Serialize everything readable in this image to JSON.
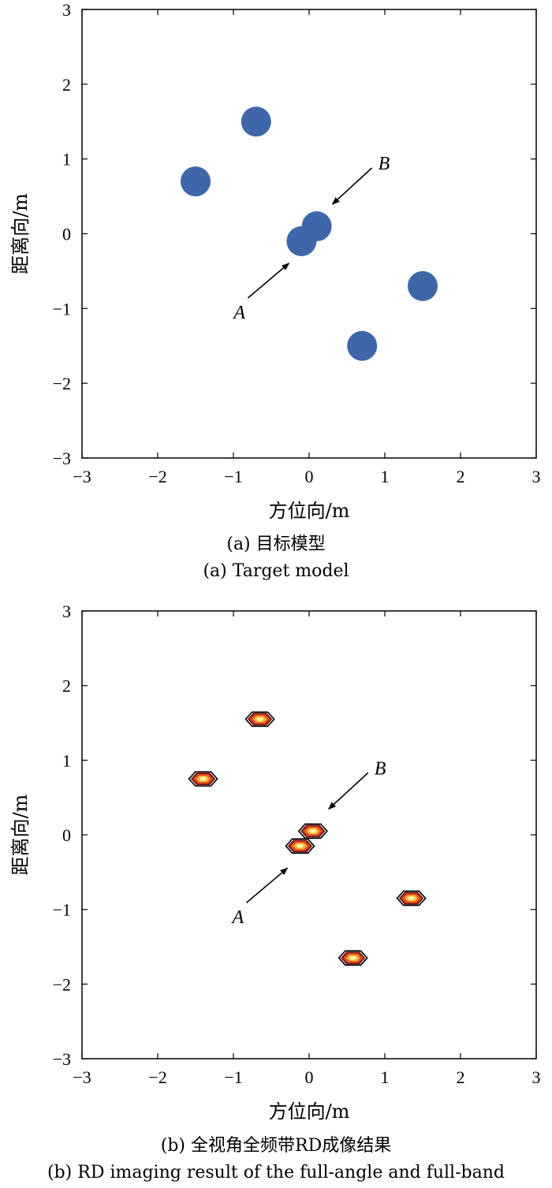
{
  "chart_data": [
    {
      "type": "scatter",
      "xlabel": "方位向/m",
      "ylabel": "距离向/m",
      "xlim": [
        -3,
        3
      ],
      "ylim": [
        -3,
        3
      ],
      "xticks": [
        "−3",
        "−2",
        "−1",
        "0",
        "1",
        "2",
        "3"
      ],
      "yticks": [
        "3",
        "2",
        "1",
        "0",
        "−1",
        "−2",
        "−3"
      ],
      "grid": false,
      "caption_cn": "(a) 目标模型",
      "caption_en": "(a) Target model",
      "marker_color": "#3f66a8",
      "points": [
        {
          "x": -0.7,
          "y": 1.5
        },
        {
          "x": -1.5,
          "y": 0.7
        },
        {
          "x": 0.1,
          "y": 0.1
        },
        {
          "x": -0.1,
          "y": -0.1
        },
        {
          "x": 1.5,
          "y": -0.7
        },
        {
          "x": 0.7,
          "y": -1.5
        }
      ],
      "annotations": [
        {
          "text": "A",
          "point": {
            "x": -0.1,
            "y": -0.1
          }
        },
        {
          "text": "B",
          "point": {
            "x": 0.1,
            "y": 0.1
          }
        }
      ]
    },
    {
      "type": "scatter",
      "xlabel": "方位向/m",
      "ylabel": "距离向/m",
      "xlim": [
        -3,
        3
      ],
      "ylim": [
        -3,
        3
      ],
      "xticks": [
        "−3",
        "−2",
        "−1",
        "0",
        "1",
        "2",
        "3"
      ],
      "yticks": [
        "3",
        "2",
        "1",
        "0",
        "−1",
        "−2",
        "−3"
      ],
      "grid": false,
      "caption_cn": "(b) 全视角全频带RD成像结果",
      "caption_en": "(b) RD imaging result of the full-angle and full-band",
      "contour_colors": [
        "#000000",
        "#7a1a1a",
        "#e8501e",
        "#f5b63a",
        "#fff4a0"
      ],
      "points": [
        {
          "x": -0.65,
          "y": 1.55
        },
        {
          "x": -1.4,
          "y": 0.75
        },
        {
          "x": 0.05,
          "y": 0.05
        },
        {
          "x": -0.12,
          "y": -0.15
        },
        {
          "x": 1.35,
          "y": -0.85
        },
        {
          "x": 0.58,
          "y": -1.65
        }
      ],
      "annotations": [
        {
          "text": "A",
          "point": {
            "x": -0.12,
            "y": -0.15
          }
        },
        {
          "text": "B",
          "point": {
            "x": 0.05,
            "y": 0.05
          }
        }
      ]
    }
  ]
}
